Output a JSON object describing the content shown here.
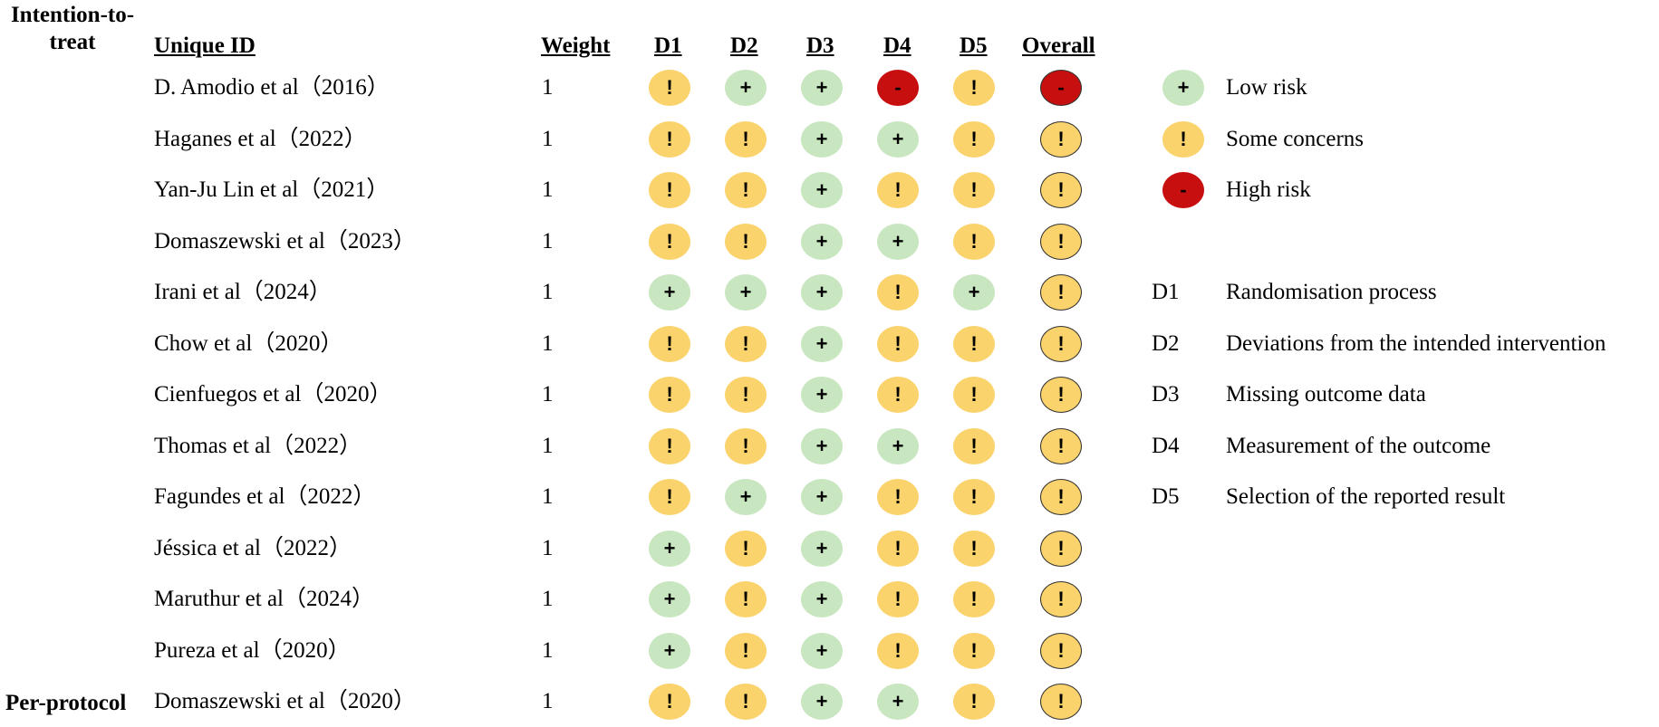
{
  "groups": [
    {
      "label": "Intention-to-\ntreat"
    },
    {
      "label": "Per-protocol"
    }
  ],
  "headers": {
    "id": "Unique ID",
    "weight": "Weight",
    "d1": "D1",
    "d2": "D2",
    "d3": "D3",
    "d4": "D4",
    "d5": "D5",
    "overall": "Overall"
  },
  "studies": [
    {
      "name": "D. Amodio et al（2016）",
      "weight": "1",
      "d": [
        "some",
        "low",
        "low",
        "high",
        "some"
      ],
      "overall": "high"
    },
    {
      "name": "Haganes et al（2022）",
      "weight": "1",
      "d": [
        "some",
        "some",
        "low",
        "low",
        "some"
      ],
      "overall": "some"
    },
    {
      "name": "Yan-Ju Lin et al（2021）",
      "weight": "1",
      "d": [
        "some",
        "some",
        "low",
        "some",
        "some"
      ],
      "overall": "some"
    },
    {
      "name": "Domaszewski et al（2023）",
      "weight": "1",
      "d": [
        "some",
        "some",
        "low",
        "low",
        "some"
      ],
      "overall": "some"
    },
    {
      "name": "Irani et al（2024）",
      "weight": "1",
      "d": [
        "low",
        "low",
        "low",
        "some",
        "low"
      ],
      "overall": "some"
    },
    {
      "name": "Chow et al（2020）",
      "weight": "1",
      "d": [
        "some",
        "some",
        "low",
        "some",
        "some"
      ],
      "overall": "some"
    },
    {
      "name": "Cienfuegos et al（2020）",
      "weight": "1",
      "d": [
        "some",
        "some",
        "low",
        "some",
        "some"
      ],
      "overall": "some"
    },
    {
      "name": "Thomas et al（2022）",
      "weight": "1",
      "d": [
        "some",
        "some",
        "low",
        "low",
        "some"
      ],
      "overall": "some"
    },
    {
      "name": "Fagundes et al（2022）",
      "weight": "1",
      "d": [
        "some",
        "low",
        "low",
        "some",
        "some"
      ],
      "overall": "some"
    },
    {
      "name": "Jéssica  et al（2022）",
      "weight": "1",
      "d": [
        "low",
        "some",
        "low",
        "some",
        "some"
      ],
      "overall": "some"
    },
    {
      "name": "Maruthur et al（2024）",
      "weight": "1",
      "d": [
        "low",
        "some",
        "low",
        "some",
        "some"
      ],
      "overall": "some"
    },
    {
      "name": "Pureza et al（2020）",
      "weight": "1",
      "d": [
        "low",
        "some",
        "low",
        "some",
        "some"
      ],
      "overall": "some"
    },
    {
      "name": "Domaszewski et al（2020）",
      "weight": "1",
      "d": [
        "some",
        "some",
        "low",
        "low",
        "some"
      ],
      "overall": "some"
    }
  ],
  "risk_levels": {
    "low": {
      "symbol": "+",
      "label": "Low risk",
      "color": "#c8e6c0"
    },
    "some": {
      "symbol": "!",
      "label": "Some concerns",
      "color": "#fbd36c"
    },
    "high": {
      "symbol": "-",
      "label": "High risk",
      "color": "#c80f0f"
    }
  },
  "legend_risk": [
    "low",
    "some",
    "high"
  ],
  "domains": [
    {
      "code": "D1",
      "label": "Randomisation process"
    },
    {
      "code": "D2",
      "label": "Deviations from the intended intervention"
    },
    {
      "code": "D3",
      "label": "Missing outcome data"
    },
    {
      "code": "D4",
      "label": "Measurement of the outcome"
    },
    {
      "code": "D5",
      "label": "Selection of the reported result"
    }
  ]
}
